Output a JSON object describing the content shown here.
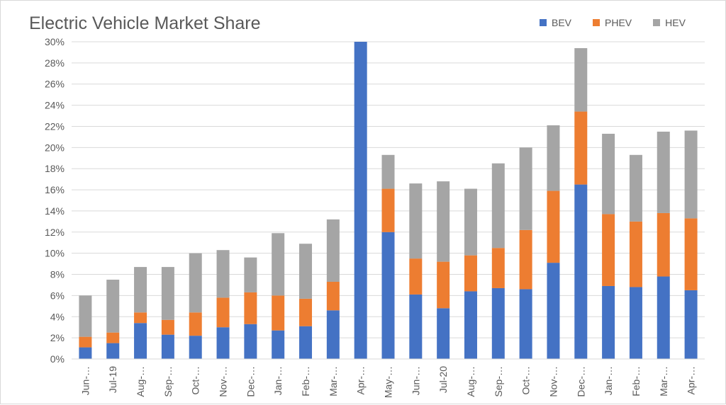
{
  "chart_data": {
    "type": "bar",
    "stacked": true,
    "title": "Electric Vehicle Market Share",
    "xlabel": "",
    "ylabel": "",
    "ylim": [
      0,
      30
    ],
    "y_ticks": [
      "0%",
      "2%",
      "4%",
      "6%",
      "8%",
      "10%",
      "12%",
      "14%",
      "16%",
      "18%",
      "20%",
      "22%",
      "24%",
      "26%",
      "28%",
      "30%"
    ],
    "categories": [
      "Jun-…",
      "Jul-19",
      "Aug-…",
      "Sep-…",
      "Oct-…",
      "Nov-…",
      "Dec-…",
      "Jan-…",
      "Feb-…",
      "Mar-…",
      "Apr-…",
      "May-…",
      "Jun-…",
      "Jul-20",
      "Aug-…",
      "Sep-…",
      "Oct-…",
      "Nov-…",
      "Dec-…",
      "Jan-…",
      "Feb-…",
      "Mar-…",
      "Apr-…"
    ],
    "series": [
      {
        "name": "BEV",
        "color": "#4472c4",
        "values": [
          1.1,
          1.5,
          3.4,
          2.3,
          2.2,
          3.0,
          3.3,
          2.7,
          3.1,
          4.6,
          30.0,
          12.0,
          6.1,
          4.8,
          6.4,
          6.7,
          6.6,
          9.1,
          16.5,
          6.9,
          6.8,
          7.8,
          6.5
        ]
      },
      {
        "name": "PHEV",
        "color": "#ed7d31",
        "values": [
          1.0,
          1.0,
          1.0,
          1.4,
          2.2,
          2.8,
          3.0,
          3.3,
          2.6,
          2.7,
          0.0,
          4.1,
          3.4,
          4.4,
          3.4,
          3.8,
          5.6,
          6.8,
          6.9,
          6.8,
          6.2,
          6.0,
          6.8
        ]
      },
      {
        "name": "HEV",
        "color": "#a5a5a5",
        "values": [
          3.9,
          5.0,
          4.3,
          5.0,
          5.6,
          4.5,
          3.3,
          5.9,
          5.2,
          5.9,
          0.0,
          3.2,
          7.1,
          7.6,
          6.3,
          8.0,
          7.8,
          6.2,
          6.0,
          7.6,
          6.3,
          7.7,
          8.3
        ]
      }
    ],
    "grid": true,
    "legend_position": "top-right"
  }
}
